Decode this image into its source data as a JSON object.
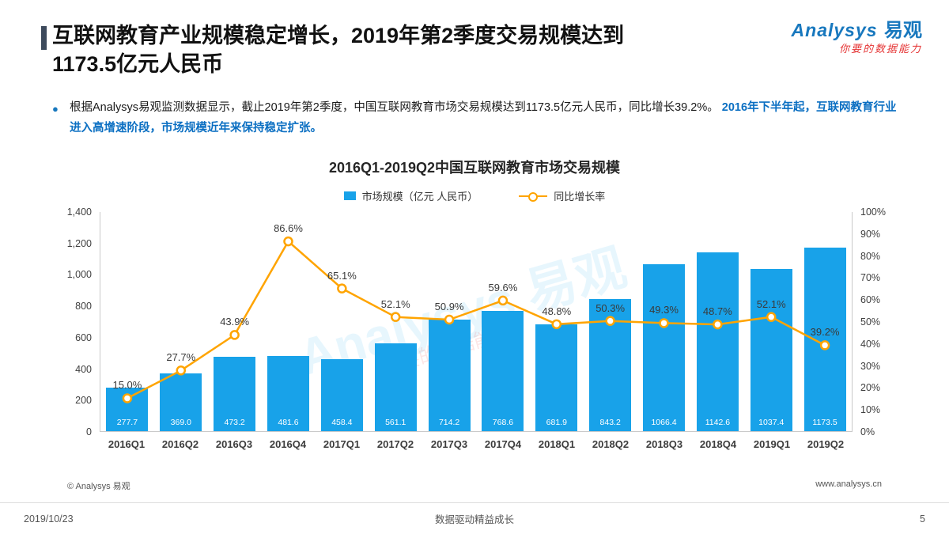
{
  "header": {
    "title_line1": "互联网教育产业规模稳定增长，2019年第2季度交易规模达到",
    "title_line2": "1173.5亿元人民币",
    "logo": {
      "brand_en": "Analysys",
      "brand_cn": "易观",
      "tagline": "你要的数据能力"
    }
  },
  "bullet": {
    "normal": "根据Analysys易观监测数据显示，截止2019年第2季度，中国互联网教育市场交易规模达到1173.5亿元人民币，同比增长39.2%。",
    "highlight": "2016年下半年起，互联网教育行业进入高增速阶段，市场规模近年来保持稳定扩张。"
  },
  "colors": {
    "bar": "#18A2E9",
    "line": "#FFA400",
    "brand_blue": "#1878BE",
    "brand_red": "#E53333",
    "highlight_blue": "#0B6FC2",
    "accent_bar": "#3D4A5C"
  },
  "chart_data": {
    "type": "bar+line",
    "title": "2016Q1-2019Q2中国互联网教育市场交易规模",
    "categories": [
      "2016Q1",
      "2016Q2",
      "2016Q3",
      "2016Q4",
      "2017Q1",
      "2017Q2",
      "2017Q3",
      "2017Q4",
      "2018Q1",
      "2018Q2",
      "2018Q3",
      "2018Q4",
      "2019Q1",
      "2019Q2"
    ],
    "series": [
      {
        "name": "市场规模（亿元 人民币）",
        "type": "bar",
        "color": "#18A2E9",
        "values": [
          277.7,
          369.0,
          473.2,
          481.6,
          458.4,
          561.1,
          714.2,
          768.6,
          681.9,
          843.2,
          1066.4,
          1142.6,
          1037.4,
          1173.5
        ]
      },
      {
        "name": "同比增长率",
        "type": "line",
        "color": "#FFA400",
        "values": [
          15.0,
          27.7,
          43.9,
          86.6,
          65.1,
          52.1,
          50.9,
          59.6,
          48.8,
          50.3,
          49.3,
          48.7,
          52.1,
          39.2
        ]
      }
    ],
    "left_axis": {
      "min": 0,
      "max": 1400,
      "ticks": [
        "0",
        "200",
        "400",
        "600",
        "800",
        "1,000",
        "1,200",
        "1,400"
      ]
    },
    "right_axis": {
      "min": 0,
      "max": 100,
      "ticks": [
        "0%",
        "10%",
        "20%",
        "30%",
        "40%",
        "50%",
        "60%",
        "70%",
        "80%",
        "90%",
        "100%"
      ]
    },
    "legend_position": "top",
    "grid": false
  },
  "watermark": {
    "main": "Analysys 易观",
    "sub": "你要的数据能力"
  },
  "chart_footer": {
    "copyright": "© Analysys 易观",
    "website": "www.analysys.cn"
  },
  "footer": {
    "date": "2019/10/23",
    "center": "数据驱动精益成长",
    "page_number": "5"
  }
}
